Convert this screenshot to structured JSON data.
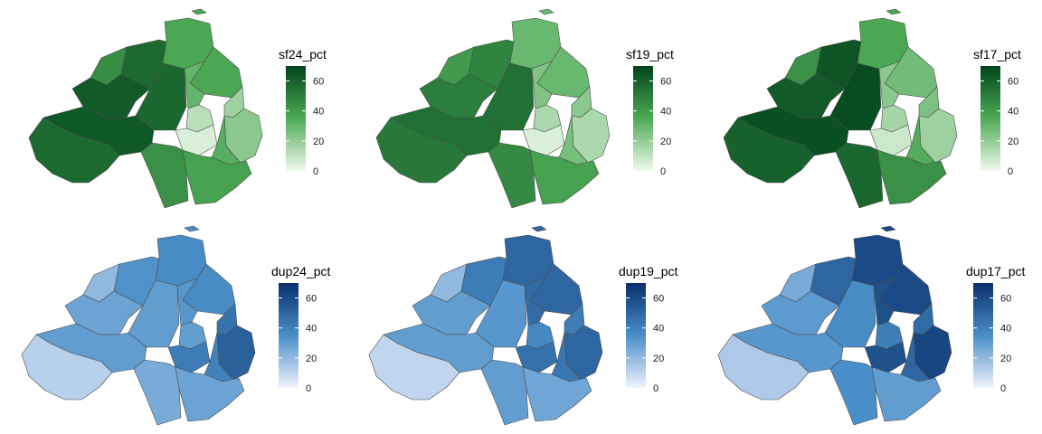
{
  "chart_data": {
    "type": "choropleth",
    "panels": [
      {
        "id": "sf24",
        "legend_title": "sf24_pct",
        "palette": "greens",
        "scale": [
          0,
          70
        ],
        "ticks": [
          0,
          20,
          40,
          60
        ],
        "tick_labels": [
          "0",
          "20",
          "40",
          "60"
        ],
        "values": [
          45,
          57,
          36,
          62,
          58,
          36,
          30,
          12,
          18,
          5,
          22,
          33,
          63,
          57,
          44,
          38
        ]
      },
      {
        "id": "sf19",
        "legend_title": "sf19_pct",
        "palette": "greens",
        "scale": [
          0,
          70
        ],
        "ticks": [
          0,
          20,
          40,
          60
        ],
        "tick_labels": [
          "0",
          "20",
          "40",
          "60"
        ],
        "values": [
          40,
          48,
          29,
          50,
          55,
          29,
          24,
          15,
          22,
          5,
          15,
          26,
          55,
          52,
          46,
          38
        ]
      },
      {
        "id": "sf17",
        "legend_title": "sf17_pct",
        "palette": "greens",
        "scale": [
          0,
          70
        ],
        "ticks": [
          0,
          20,
          40,
          60
        ],
        "tick_labels": [
          "0",
          "20",
          "40",
          "60"
        ],
        "values": [
          44,
          64,
          36,
          62,
          67,
          27,
          22,
          16,
          25,
          8,
          18,
          34,
          66,
          60,
          58,
          44
        ]
      },
      {
        "id": "dup24",
        "legend_title": "dup24_pct",
        "palette": "blues",
        "scale": [
          0,
          70
        ],
        "ticks": [
          0,
          20,
          40,
          60
        ],
        "tick_labels": [
          "0",
          "20",
          "40",
          "60"
        ],
        "values": [
          20,
          34,
          36,
          28,
          30,
          36,
          32,
          30,
          45,
          42,
          52,
          40,
          30,
          12,
          25,
          28
        ]
      },
      {
        "id": "dup19",
        "legend_title": "dup19_pct",
        "palette": "blues",
        "scale": [
          0,
          70
        ],
        "ticks": [
          0,
          20,
          40,
          60
        ],
        "tick_labels": [
          "0",
          "20",
          "40",
          "60"
        ],
        "values": [
          20,
          42,
          50,
          30,
          32,
          50,
          48,
          38,
          42,
          46,
          50,
          44,
          30,
          10,
          30,
          27
        ]
      },
      {
        "id": "dup17",
        "legend_title": "dup17_pct",
        "palette": "blues",
        "scale": [
          0,
          70
        ],
        "ticks": [
          0,
          20,
          40,
          60
        ],
        "tick_labels": [
          "0",
          "20",
          "40",
          "60"
        ],
        "values": [
          25,
          50,
          60,
          31,
          36,
          60,
          58,
          41,
          48,
          58,
          62,
          50,
          32,
          14,
          35,
          30
        ]
      }
    ]
  },
  "colors": {
    "greens_low": "#f1faee",
    "greens_mid": "#4daa55",
    "greens_high": "#00441b",
    "blues_low": "#f0f2fd",
    "blues_mid": "#4a8fc9",
    "blues_high": "#08306b",
    "border": "#4d4d4d",
    "background": "#ffffff"
  }
}
